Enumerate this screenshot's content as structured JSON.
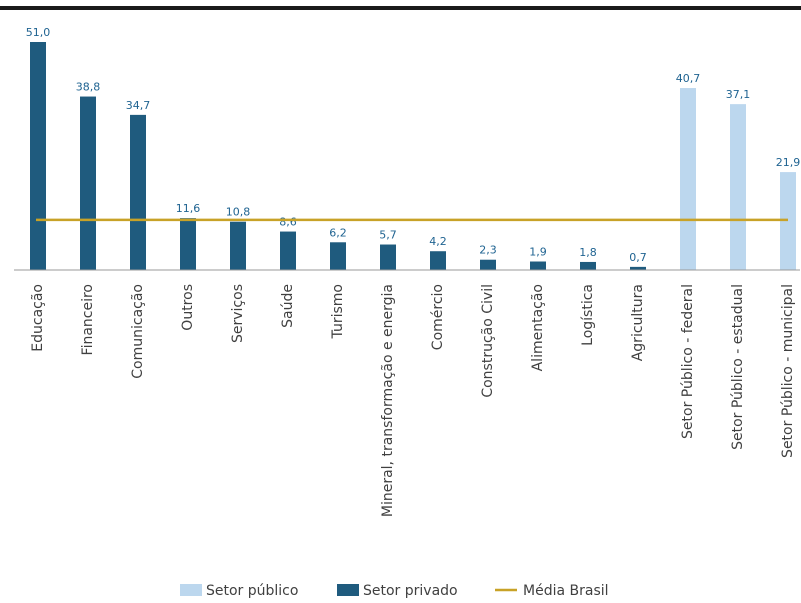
{
  "chart_data": {
    "type": "bar",
    "categories": [
      "Educação",
      "Financeiro",
      "Comunicação",
      "Outros",
      "Serviços",
      "Saúde",
      "Turismo",
      "Mineral, transformação e energia",
      "Comércio",
      "Construção Civil",
      "Alimentação",
      "Logística",
      "Agricultura",
      "Setor Público - federal",
      "Setor Público - estadual",
      "Setor Público - municipal"
    ],
    "values": [
      51.0,
      38.8,
      34.7,
      11.6,
      10.8,
      8.6,
      6.2,
      5.7,
      4.2,
      2.3,
      1.9,
      1.8,
      0.7,
      40.7,
      37.1,
      21.9
    ],
    "value_labels": [
      "51,0",
      "38,8",
      "34,7",
      "11,6",
      "10,8",
      "8,6",
      "6,2",
      "5,7",
      "4,2",
      "2,3",
      "1,9",
      "1,8",
      "0,7",
      "40,7",
      "37,1",
      "21,9"
    ],
    "groups": [
      "Setor privado",
      "Setor privado",
      "Setor privado",
      "Setor privado",
      "Setor privado",
      "Setor privado",
      "Setor privado",
      "Setor privado",
      "Setor privado",
      "Setor privado",
      "Setor privado",
      "Setor privado",
      "Setor privado",
      "Setor público",
      "Setor público",
      "Setor público"
    ],
    "reference_line": {
      "name": "Média Brasil",
      "value": 11.2
    },
    "legend": {
      "position": "bottom",
      "items": [
        {
          "name": "Setor público",
          "color": "#bcd7ee"
        },
        {
          "name": "Setor privado",
          "color": "#1f5b7e"
        },
        {
          "name": "Média Brasil",
          "color": "#c8a227"
        }
      ]
    },
    "ylim": [
      0,
      51.0
    ],
    "grid": false,
    "title": "",
    "xlabel": "",
    "ylabel": ""
  },
  "colors": {
    "privado": "#1f5b7e",
    "publico": "#bcd7ee",
    "media": "#c8a227",
    "value_label": "#1f6391",
    "axis": "#999999"
  }
}
